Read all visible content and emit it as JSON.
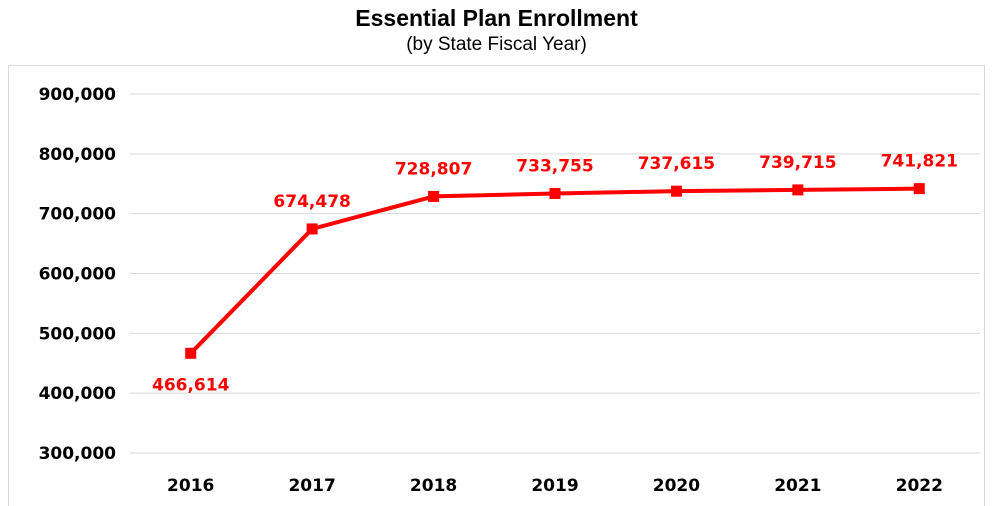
{
  "chart_data": {
    "type": "line",
    "title": "Essential Plan Enrollment",
    "subtitle": "(by State Fiscal Year)",
    "categories": [
      "2016",
      "2017",
      "2018",
      "2019",
      "2020",
      "2021",
      "2022"
    ],
    "values": [
      466614,
      674478,
      728807,
      733755,
      737615,
      739715,
      741821
    ],
    "data_labels": [
      "466,614",
      "674,478",
      "728,807",
      "733,755",
      "737,615",
      "739,715",
      "741,821"
    ],
    "ylim": [
      300000,
      900000
    ],
    "yticks": [
      300000,
      400000,
      500000,
      600000,
      700000,
      800000,
      900000
    ],
    "ytick_labels": [
      "300,000",
      "400,000",
      "500,000",
      "600,000",
      "700,000",
      "800,000",
      "900,000"
    ],
    "grid": true,
    "legend": "none",
    "series_color": "#ff0000",
    "grid_color": "#d9d9d9"
  }
}
